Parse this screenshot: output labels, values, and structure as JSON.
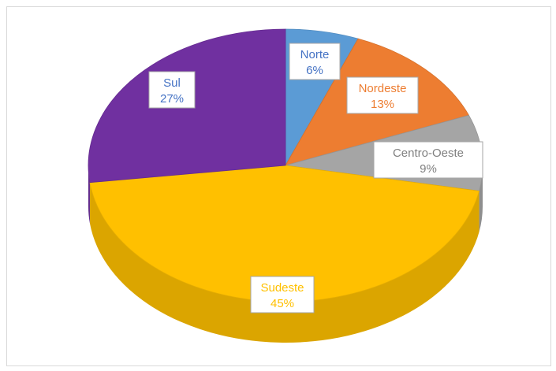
{
  "chart_data": {
    "type": "pie",
    "style": "3d",
    "title": "",
    "slices": [
      {
        "label": "Norte",
        "value": 6,
        "display": "6%",
        "color": "#5b9bd5",
        "text_color": "#4472c4"
      },
      {
        "label": "Nordeste",
        "value": 13,
        "display": "13%",
        "color": "#ed7d31",
        "text_color": "#ed7d31"
      },
      {
        "label": "Centro-Oeste",
        "value": 9,
        "display": "9%",
        "color": "#a5a5a5",
        "text_color": "#808080"
      },
      {
        "label": "Sudeste",
        "value": 45,
        "display": "45%",
        "color": "#ffc000",
        "text_color": "#ffc000"
      },
      {
        "label": "Sul",
        "value": 27,
        "display": "27%",
        "color": "#7030a0",
        "text_color": "#4472c4"
      }
    ]
  }
}
